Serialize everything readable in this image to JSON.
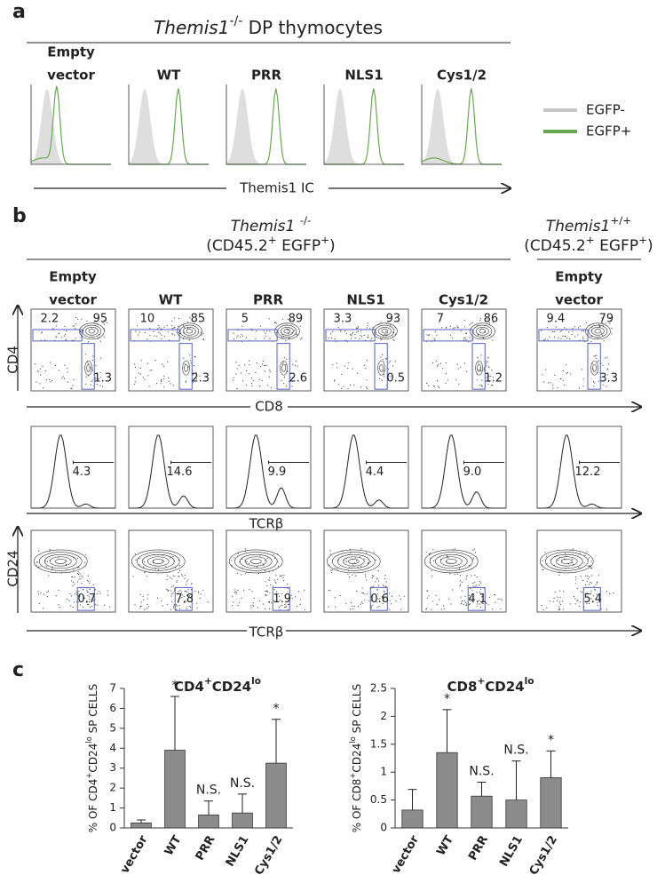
{
  "panel_a": {
    "label": "a",
    "title": [
      "Themis1",
      "-/-",
      " DP thymocytes"
    ],
    "columns": [
      [
        "Empty",
        "vector"
      ],
      [
        "WT"
      ],
      [
        "PRR"
      ],
      [
        "NLS1"
      ],
      [
        "Cys1/2"
      ]
    ],
    "x_axis_label": "Themis1 IC",
    "legend": [
      "EGFP-",
      "EGFP+"
    ],
    "legend_colors": [
      "#c8c8c8",
      "#6aa84f"
    ]
  },
  "panel_b": {
    "label": "b",
    "left_header": [
      [
        "Themis1 ",
        "-/-"
      ],
      [
        "(CD45.2",
        "+",
        " EGFP",
        "+",
        ")"
      ]
    ],
    "right_header": [
      [
        "Themis1",
        "+/+"
      ],
      [
        "(CD45.2",
        "+",
        " EGFP",
        "+",
        ")"
      ]
    ],
    "columns": [
      [
        "Empty",
        "vector"
      ],
      [
        "WT"
      ],
      [
        "PRR"
      ],
      [
        "NLS1"
      ],
      [
        "Cys1/2"
      ],
      [
        "Empty",
        "vector"
      ]
    ],
    "row1": {
      "y_axis_label": "CD4",
      "x_axis_label": "CD8",
      "gates": [
        [
          "2.2",
          "95",
          "1.3"
        ],
        [
          "10",
          "85",
          "2.3"
        ],
        [
          "5",
          "89",
          "2.6"
        ],
        [
          "3.3",
          "93",
          "0.5"
        ],
        [
          "7",
          "86",
          "1.2"
        ],
        [
          "9.4",
          "79",
          "3.3"
        ]
      ]
    },
    "row2": {
      "x_axis_label": "TCRβ",
      "gates": [
        "4.3",
        "14.6",
        "9.9",
        "4.4",
        "9.0",
        "12.2"
      ]
    },
    "row3": {
      "y_axis_label": "CD24",
      "x_axis_label": "TCRβ",
      "gates": [
        "0.7",
        "7.8",
        "1.9",
        "0.6",
        "4.1",
        "5.4"
      ]
    }
  },
  "panel_c": {
    "label": "c"
  },
  "chart_data": [
    {
      "type": "bar",
      "title": [
        "CD4",
        "+",
        "CD24",
        "lo"
      ],
      "y_axis_label": [
        "% OF CD4",
        "+",
        "CD24",
        "lo",
        " SP CELLS"
      ],
      "categories": [
        "vector",
        "WT",
        "PRR",
        "NLS1",
        "Cys1/2"
      ],
      "values": [
        0.25,
        3.9,
        0.65,
        0.75,
        3.25
      ],
      "errors": [
        0.15,
        2.7,
        0.7,
        0.95,
        2.2
      ],
      "annotations": [
        null,
        "*",
        "N.S.",
        "N.S.",
        "*"
      ],
      "color": "#8c8c8c",
      "ylim": [
        0,
        7
      ],
      "yticks": [
        0,
        1,
        2,
        3,
        4,
        5,
        6,
        7
      ]
    },
    {
      "type": "bar",
      "title": [
        "CD8",
        "+",
        "CD24",
        "lo"
      ],
      "y_axis_label": [
        "% OF CD8",
        "+",
        "CD24",
        "lo",
        " SP CELLS"
      ],
      "categories": [
        "vector",
        "WT",
        "PRR",
        "NLS1",
        "Cys1/2"
      ],
      "values": [
        0.32,
        1.35,
        0.57,
        0.5,
        0.9
      ],
      "errors": [
        0.37,
        0.77,
        0.25,
        0.7,
        0.48
      ],
      "annotations": [
        null,
        "*",
        "N.S.",
        "N.S.",
        "*"
      ],
      "color": "#8c8c8c",
      "ylim": [
        0,
        2.5
      ],
      "yticks": [
        0,
        0.5,
        1,
        1.5,
        2,
        2.5
      ]
    }
  ]
}
